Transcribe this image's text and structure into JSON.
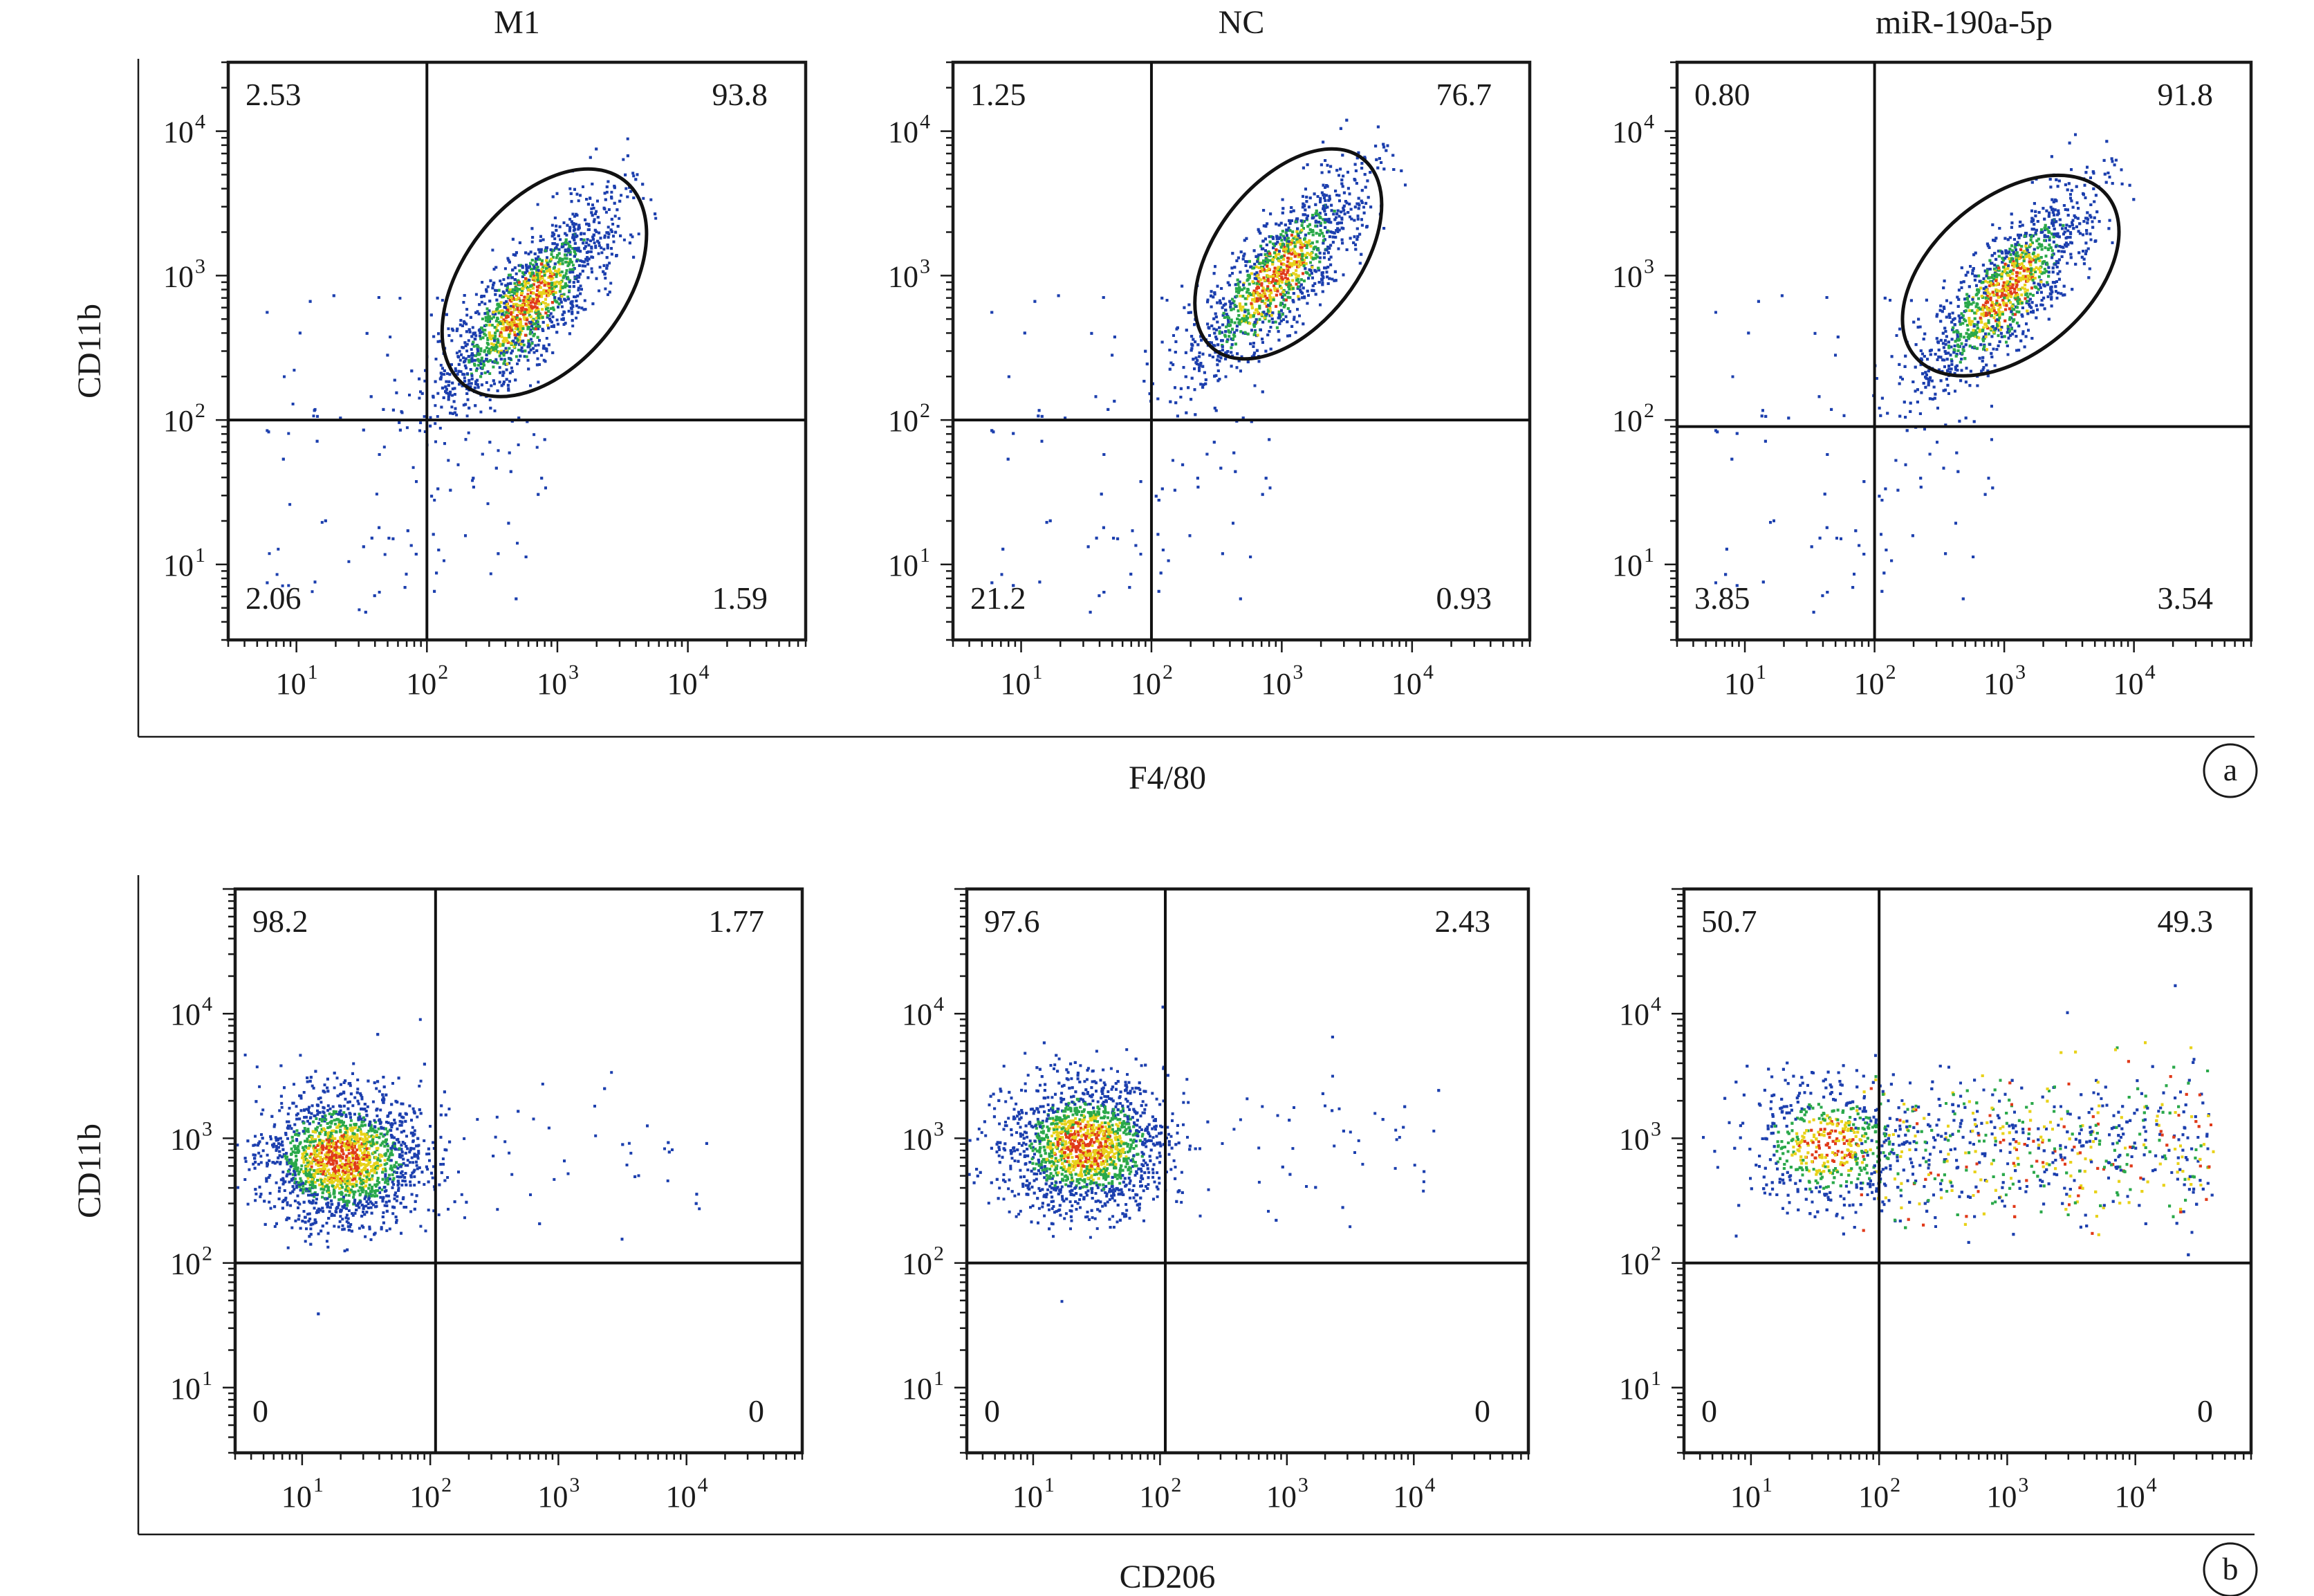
{
  "chart_data": [
    {
      "type": "scatter",
      "panel": "a",
      "plot_kind": "flow cytometry density dot plot",
      "xlabel": "F4/80",
      "ylabel": "CD11b",
      "x_scale": "log",
      "y_scale": "log",
      "x_ticks": [
        "10",
        "10",
        "10",
        "10"
      ],
      "x_tick_exponents": [
        "1",
        "2",
        "3",
        "4"
      ],
      "y_ticks": [
        "10",
        "10",
        "10",
        "10"
      ],
      "y_tick_exponents": [
        "1",
        "2",
        "3",
        "4"
      ],
      "xlim": [
        3,
        80000
      ],
      "ylim": [
        3,
        30000
      ],
      "gate_shape": "ellipse",
      "plots": [
        {
          "title": "M1",
          "quadrants": {
            "upper_left": "2.53",
            "upper_right": "93.8",
            "lower_left": "2.06",
            "lower_right": "1.59"
          },
          "quadrant_x": 100,
          "quadrant_y": 100,
          "cluster_center_log": [
            2.75,
            2.8
          ],
          "gate_center_log": [
            2.9,
            2.95
          ],
          "gate_radii_log": [
            0.62,
            1.45
          ],
          "gate_rotation_deg": 38
        },
        {
          "title": "NC",
          "quadrants": {
            "upper_left": "1.25",
            "upper_right": "76.7",
            "lower_left": "21.2",
            "lower_right": "0.93"
          },
          "quadrant_x": 100,
          "quadrant_y": 100,
          "cluster_center_log": [
            2.95,
            3.0
          ],
          "gate_center_log": [
            3.05,
            3.15
          ],
          "gate_radii_log": [
            0.55,
            1.35
          ],
          "gate_rotation_deg": 38
        },
        {
          "title": "miR-190a-5p",
          "quadrants": {
            "upper_left": "0.80",
            "upper_right": "91.8",
            "lower_left": "3.85",
            "lower_right": "3.54"
          },
          "quadrant_x": 100,
          "quadrant_y": 90,
          "cluster_center_log": [
            3.0,
            2.9
          ],
          "gate_center_log": [
            3.05,
            3.0
          ],
          "gate_radii_log": [
            0.6,
            1.4
          ],
          "gate_rotation_deg": 50
        }
      ]
    },
    {
      "type": "scatter",
      "panel": "b",
      "plot_kind": "flow cytometry density dot plot",
      "xlabel": "CD206",
      "ylabel": "CD11b",
      "x_scale": "log",
      "y_scale": "log",
      "x_ticks": [
        "10",
        "10",
        "10",
        "10"
      ],
      "x_tick_exponents": [
        "1",
        "2",
        "3",
        "4"
      ],
      "y_ticks": [
        "10",
        "10",
        "10",
        "10"
      ],
      "y_tick_exponents": [
        "1",
        "2",
        "3",
        "4"
      ],
      "xlim": [
        3,
        80000
      ],
      "ylim": [
        3,
        100000
      ],
      "plots": [
        {
          "title": "",
          "quadrants": {
            "upper_left": "98.2",
            "upper_right": "1.77",
            "lower_left": "0",
            "lower_right": "0"
          },
          "quadrant_x": 110,
          "quadrant_y": 100,
          "cluster_center_log": [
            1.3,
            2.85
          ]
        },
        {
          "title": "",
          "quadrants": {
            "upper_left": "97.6",
            "upper_right": "2.43",
            "lower_left": "0",
            "lower_right": "0"
          },
          "quadrant_x": 110,
          "quadrant_y": 100,
          "cluster_center_log": [
            1.4,
            2.95
          ]
        },
        {
          "title": "",
          "quadrants": {
            "upper_left": "50.7",
            "upper_right": "49.3",
            "lower_left": "0",
            "lower_right": "0"
          },
          "quadrant_x": 100,
          "quadrant_y": 100,
          "cluster_center_log": [
            1.6,
            2.95
          ]
        }
      ]
    }
  ],
  "panel_letters": [
    "a",
    "b"
  ],
  "colors": {
    "low_density": "#1c3fae",
    "mid_density": "#2aa84a",
    "high_density": "#e8d21a",
    "peak_density": "#e03a1a"
  }
}
